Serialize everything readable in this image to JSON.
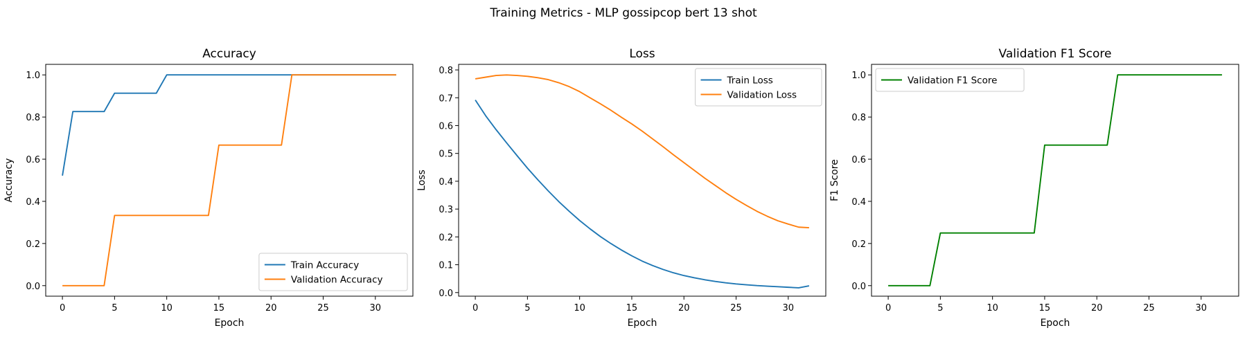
{
  "suptitle": "Training Metrics - MLP gossipcop bert 13 shot",
  "chart_data": [
    {
      "type": "line",
      "title": "Accuracy",
      "xlabel": "Epoch",
      "ylabel": "Accuracy",
      "xlim": [
        -1.6,
        33.6
      ],
      "ylim": [
        -0.05,
        1.05
      ],
      "xticks": [
        0,
        5,
        10,
        15,
        20,
        25,
        30
      ],
      "yticks": [
        0.0,
        0.2,
        0.4,
        0.6,
        0.8,
        1.0
      ],
      "tick_format": 1,
      "legend": "lower right",
      "x": [
        0,
        1,
        2,
        3,
        4,
        5,
        6,
        7,
        8,
        9,
        10,
        11,
        12,
        13,
        14,
        15,
        16,
        17,
        18,
        19,
        20,
        21,
        22,
        23,
        24,
        25,
        26,
        27,
        28,
        29,
        30,
        31,
        32
      ],
      "series": [
        {
          "name": "Train Accuracy",
          "color": "#1f77b4",
          "values": [
            0.522,
            0.826,
            0.826,
            0.826,
            0.826,
            0.913,
            0.913,
            0.913,
            0.913,
            0.913,
            1,
            1,
            1,
            1,
            1,
            1,
            1,
            1,
            1,
            1,
            1,
            1,
            1,
            1,
            1,
            1,
            1,
            1,
            1,
            1,
            1,
            1,
            1
          ]
        },
        {
          "name": "Validation Accuracy",
          "color": "#ff7f0e",
          "values": [
            0,
            0,
            0,
            0,
            0,
            0.333,
            0.333,
            0.333,
            0.333,
            0.333,
            0.333,
            0.333,
            0.333,
            0.333,
            0.333,
            0.667,
            0.667,
            0.667,
            0.667,
            0.667,
            0.667,
            0.667,
            1,
            1,
            1,
            1,
            1,
            1,
            1,
            1,
            1,
            1,
            1
          ]
        }
      ]
    },
    {
      "type": "line",
      "title": "Loss",
      "xlabel": "Epoch",
      "ylabel": "Loss",
      "xlim": [
        -1.6,
        33.6
      ],
      "ylim": [
        -0.013,
        0.82
      ],
      "xticks": [
        0,
        5,
        10,
        15,
        20,
        25,
        30
      ],
      "yticks": [
        0.0,
        0.1,
        0.2,
        0.3,
        0.4,
        0.5,
        0.6,
        0.7,
        0.8
      ],
      "tick_format": 1,
      "legend": "upper right",
      "x": [
        0,
        1,
        2,
        3,
        4,
        5,
        6,
        7,
        8,
        9,
        10,
        11,
        12,
        13,
        14,
        15,
        16,
        17,
        18,
        19,
        20,
        21,
        22,
        23,
        24,
        25,
        26,
        27,
        28,
        29,
        30,
        31,
        32
      ],
      "series": [
        {
          "name": "Train Loss",
          "color": "#1f77b4",
          "values": [
            0.692,
            0.635,
            0.585,
            0.538,
            0.492,
            0.447,
            0.405,
            0.365,
            0.327,
            0.292,
            0.259,
            0.229,
            0.201,
            0.176,
            0.153,
            0.132,
            0.113,
            0.097,
            0.083,
            0.071,
            0.061,
            0.053,
            0.046,
            0.04,
            0.035,
            0.031,
            0.028,
            0.025,
            0.023,
            0.021,
            0.019,
            0.017,
            0.024
          ]
        },
        {
          "name": "Validation Loss",
          "color": "#ff7f0e",
          "values": [
            0.768,
            0.774,
            0.78,
            0.782,
            0.78,
            0.777,
            0.772,
            0.765,
            0.754,
            0.74,
            0.722,
            0.7,
            0.678,
            0.655,
            0.63,
            0.606,
            0.58,
            0.552,
            0.524,
            0.495,
            0.467,
            0.439,
            0.411,
            0.385,
            0.359,
            0.335,
            0.313,
            0.292,
            0.274,
            0.258,
            0.246,
            0.235,
            0.233
          ]
        }
      ]
    },
    {
      "type": "line",
      "title": "Validation F1 Score",
      "xlabel": "Epoch",
      "ylabel": "F1 Score",
      "xlim": [
        -1.6,
        33.6
      ],
      "ylim": [
        -0.05,
        1.05
      ],
      "xticks": [
        0,
        5,
        10,
        15,
        20,
        25,
        30
      ],
      "yticks": [
        0.0,
        0.2,
        0.4,
        0.6,
        0.8,
        1.0
      ],
      "tick_format": 1,
      "legend": "upper left",
      "x": [
        0,
        1,
        2,
        3,
        4,
        5,
        6,
        7,
        8,
        9,
        10,
        11,
        12,
        13,
        14,
        15,
        16,
        17,
        18,
        19,
        20,
        21,
        22,
        23,
        24,
        25,
        26,
        27,
        28,
        29,
        30,
        31,
        32
      ],
      "series": [
        {
          "name": "Validation F1 Score",
          "color": "#008000",
          "values": [
            0,
            0,
            0,
            0,
            0,
            0.25,
            0.25,
            0.25,
            0.25,
            0.25,
            0.25,
            0.25,
            0.25,
            0.25,
            0.25,
            0.667,
            0.667,
            0.667,
            0.667,
            0.667,
            0.667,
            0.667,
            1,
            1,
            1,
            1,
            1,
            1,
            1,
            1,
            1,
            1,
            1
          ]
        }
      ]
    }
  ]
}
